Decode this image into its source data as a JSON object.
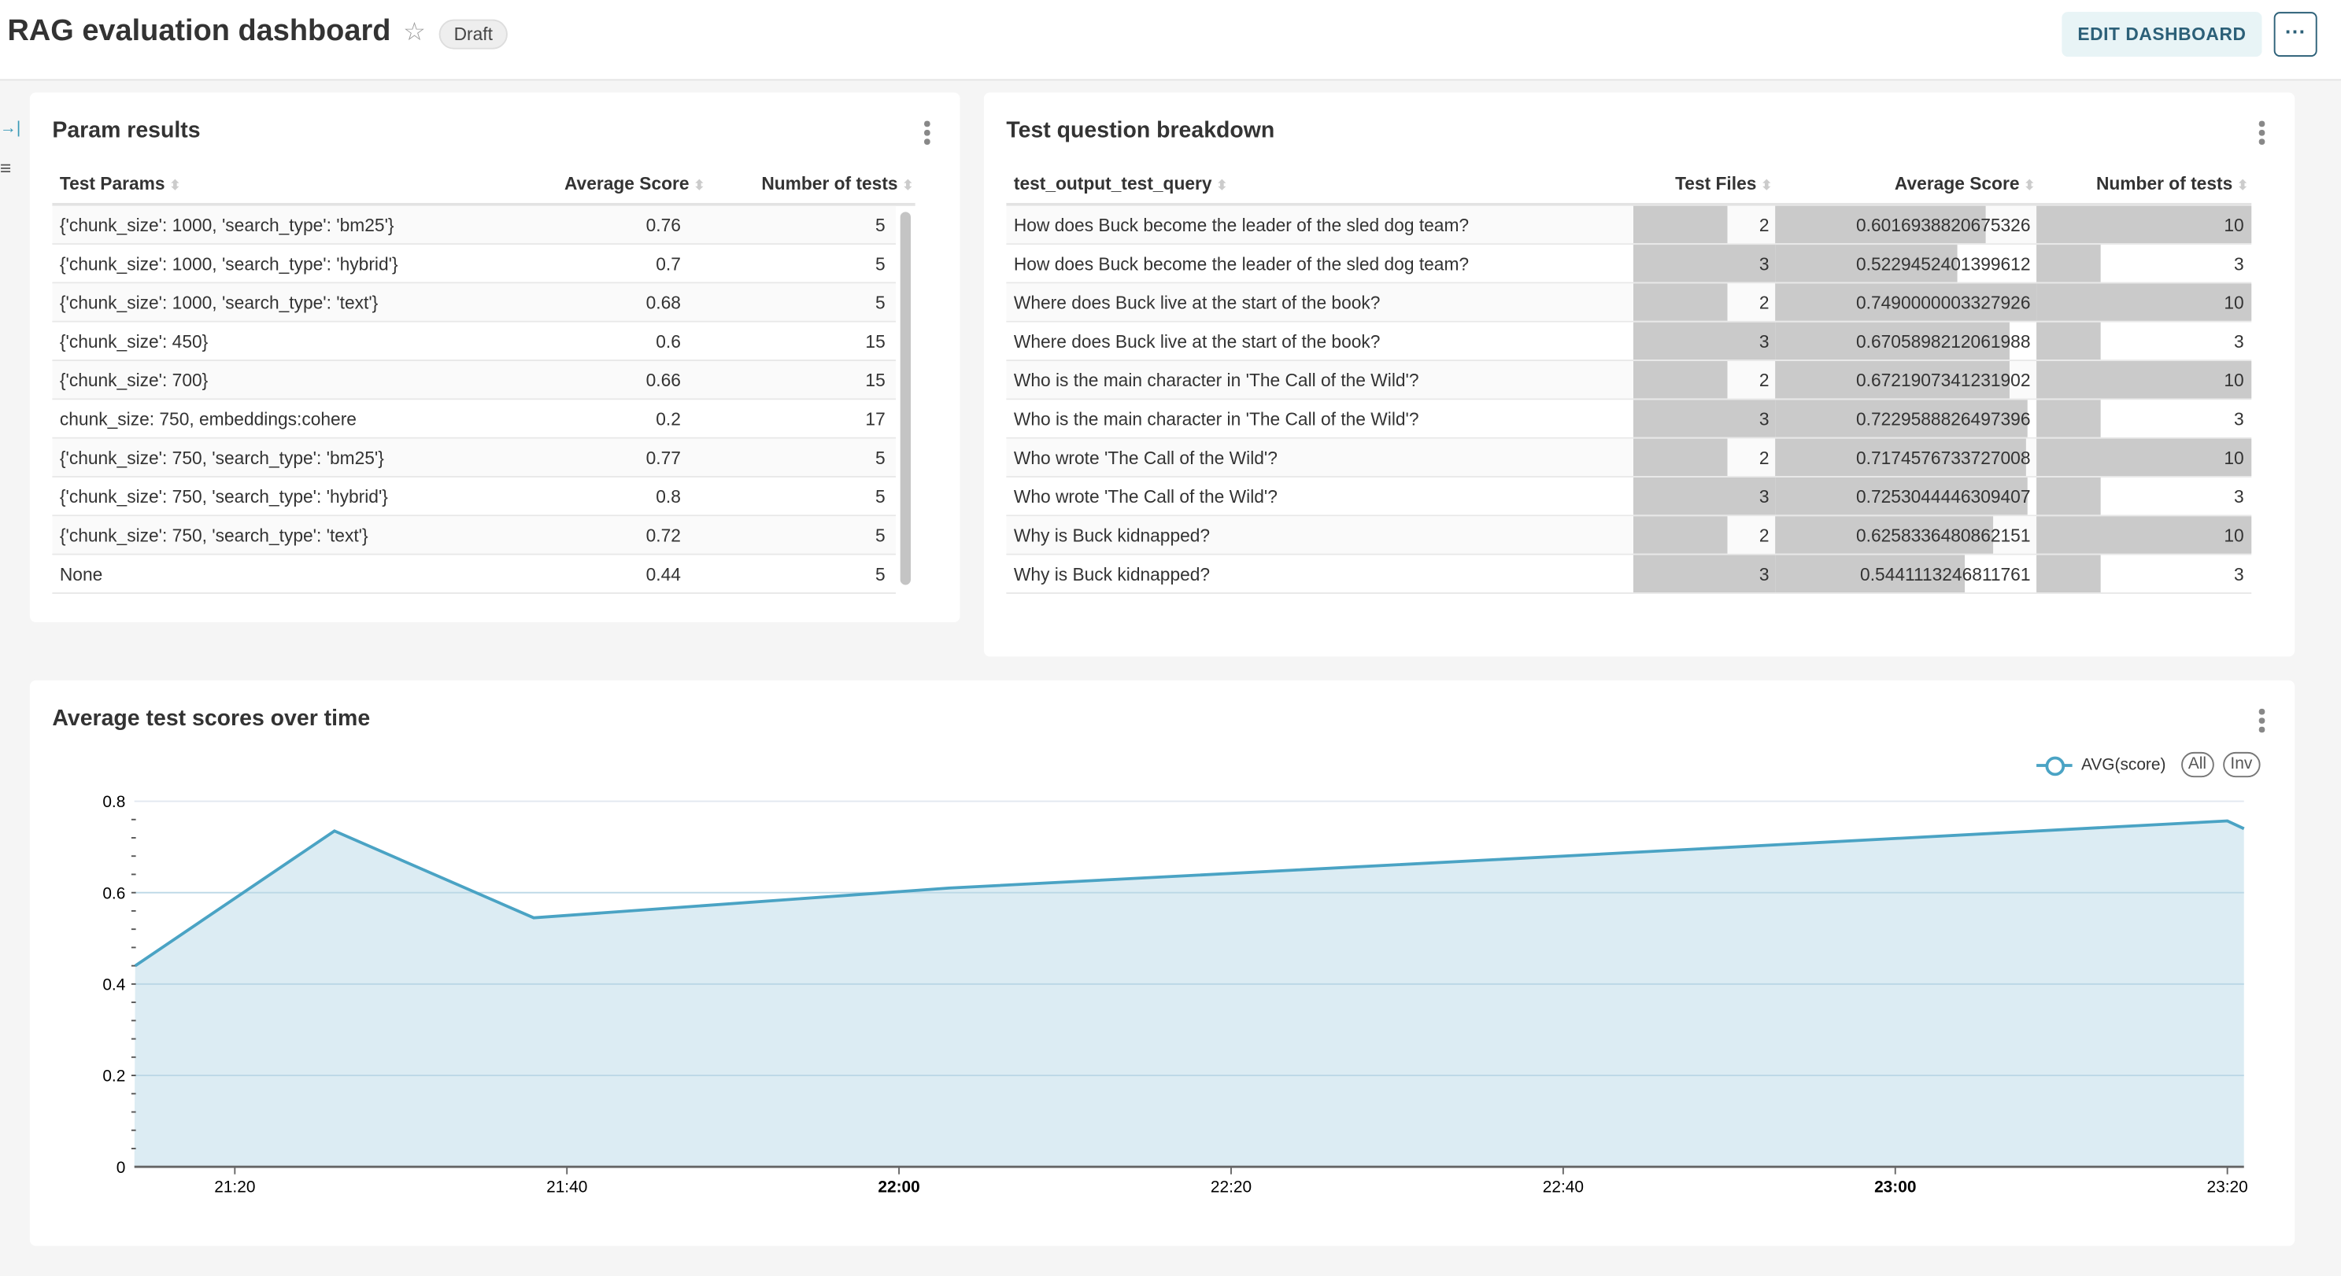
{
  "header": {
    "title": "RAG evaluation dashboard",
    "status_badge": "Draft",
    "edit_label": "EDIT DASHBOARD",
    "more_label": "···"
  },
  "sidebar": {
    "icons": [
      "expand-icon",
      "filter-icon"
    ]
  },
  "param_results": {
    "title": "Param results",
    "columns": [
      "Test Params",
      "Average Score",
      "Number of tests"
    ],
    "rows": [
      [
        "{'chunk_size': 1000, 'search_type': 'bm25'}",
        "0.76",
        "5"
      ],
      [
        "{'chunk_size': 1000, 'search_type': 'hybrid'}",
        "0.7",
        "5"
      ],
      [
        "{'chunk_size': 1000, 'search_type': 'text'}",
        "0.68",
        "5"
      ],
      [
        "{'chunk_size': 450}",
        "0.6",
        "15"
      ],
      [
        "{'chunk_size': 700}",
        "0.66",
        "15"
      ],
      [
        "chunk_size: 750, embeddings:cohere",
        "0.2",
        "17"
      ],
      [
        "{'chunk_size': 750, 'search_type': 'bm25'}",
        "0.77",
        "5"
      ],
      [
        "{'chunk_size': 750, 'search_type': 'hybrid'}",
        "0.8",
        "5"
      ],
      [
        "{'chunk_size': 750, 'search_type': 'text'}",
        "0.72",
        "5"
      ],
      [
        "None",
        "0.44",
        "5"
      ]
    ]
  },
  "breakdown": {
    "title": "Test question breakdown",
    "columns": [
      "test_output_test_query",
      "Test Files",
      "Average Score",
      "Number of tests"
    ],
    "bar_color": "#cacaca",
    "rows": [
      [
        "How does Buck become the leader of the sled dog team?",
        "2",
        "0.6016938820675326",
        "10"
      ],
      [
        "How does Buck become the leader of the sled dog team?",
        "3",
        "0.5229452401399612",
        "3"
      ],
      [
        "Where does Buck live at the start of the book?",
        "2",
        "0.7490000003327926",
        "10"
      ],
      [
        "Where does Buck live at the start of the book?",
        "3",
        "0.6705898212061988",
        "3"
      ],
      [
        "Who is the main character in 'The Call of the Wild'?",
        "2",
        "0.6721907341231902",
        "10"
      ],
      [
        "Who is the main character in 'The Call of the Wild'?",
        "3",
        "0.7229588826497396",
        "3"
      ],
      [
        "Who wrote 'The Call of the Wild'?",
        "2",
        "0.7174576733727008",
        "10"
      ],
      [
        "Who wrote 'The Call of the Wild'?",
        "3",
        "0.7253044446309407",
        "3"
      ],
      [
        "Why is Buck kidnapped?",
        "2",
        "0.6258336480862151",
        "10"
      ],
      [
        "Why is Buck kidnapped?",
        "3",
        "0.5441113246811761",
        "3"
      ]
    ]
  },
  "timeline": {
    "title": "Average test scores over time",
    "legend": {
      "series": "AVG(score)",
      "all": "All",
      "inv": "Inv"
    }
  },
  "chart_data": {
    "type": "area",
    "title": "Average test scores over time",
    "series": [
      {
        "name": "AVG(score)",
        "color": "#4aa3c4",
        "fill": "#dcecf3",
        "x": [
          "21:14",
          "21:26",
          "21:38",
          "22:03",
          "22:40",
          "23:20",
          "23:21"
        ],
        "y": [
          0.44,
          0.735,
          0.545,
          0.61,
          0.68,
          0.757,
          0.74
        ]
      }
    ],
    "xlim": [
      "21:14",
      "23:21"
    ],
    "ylim": [
      0,
      0.8
    ],
    "x_ticks": [
      "21:20",
      "21:40",
      "22:00",
      "22:20",
      "22:40",
      "23:00",
      "23:20"
    ],
    "x_ticks_bold": [
      "22:00",
      "23:00"
    ],
    "y_ticks": [
      "0",
      "0.2",
      "0.4",
      "0.6",
      "0.8"
    ],
    "grid": true,
    "legend_position": "top-right"
  }
}
